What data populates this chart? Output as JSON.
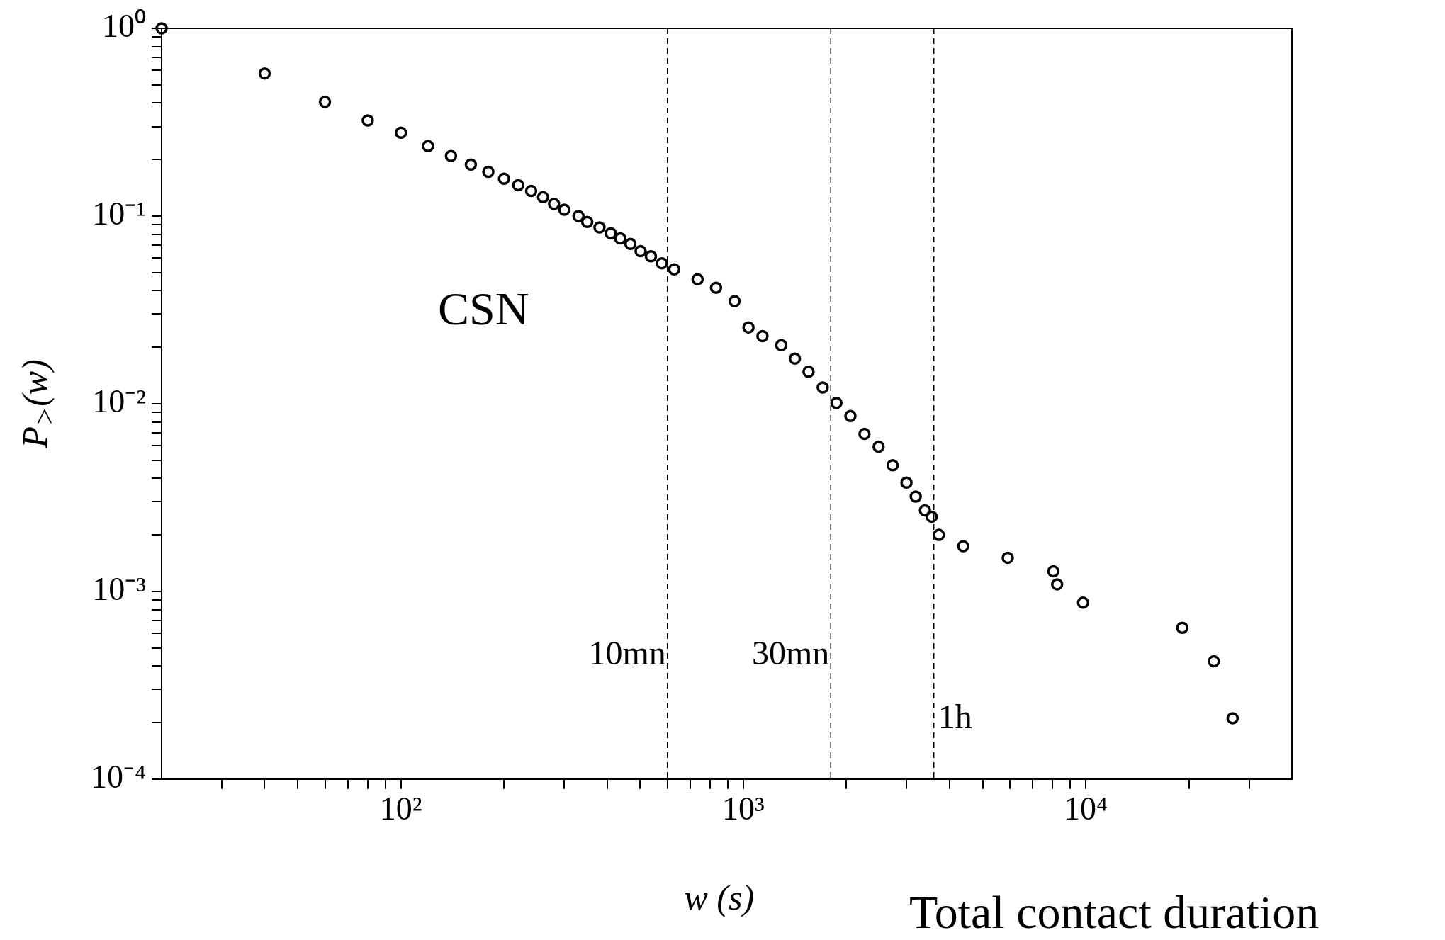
{
  "chart_data": {
    "type": "scatter",
    "xlabel": "w (s)",
    "ylabel": "P$_{>}$(w)",
    "log": "xy",
    "grid": false,
    "legend": false,
    "marker": "circle",
    "x": [
      20,
      40,
      60,
      80,
      100,
      120,
      140,
      160,
      180,
      200,
      220,
      240,
      260,
      280,
      300,
      330,
      350,
      380,
      410,
      437,
      468,
      501,
      537,
      578,
      628,
      735,
      832,
      943,
      1035,
      1137,
      1290,
      1414,
      1550,
      1705,
      1870,
      2054,
      2258,
      2483,
      2729,
      2995,
      3187,
      3391,
      3548,
      3725,
      4385,
      5918,
      8040,
      8250,
      9820,
      19140,
      23660,
      26850
    ],
    "series": [
      {
        "color": "#000000",
        "values": [
          1.0,
          0.575,
          0.406,
          0.323,
          0.278,
          0.236,
          0.209,
          0.188,
          0.172,
          0.158,
          0.146,
          0.136,
          0.126,
          0.116,
          0.108,
          0.1,
          0.093,
          0.087,
          0.081,
          0.076,
          0.071,
          0.065,
          0.061,
          0.056,
          0.052,
          0.046,
          0.0415,
          0.0352,
          0.0255,
          0.0229,
          0.0205,
          0.0174,
          0.0148,
          0.0122,
          0.0101,
          0.0086,
          0.0069,
          0.0059,
          0.0047,
          0.0038,
          0.0032,
          0.0027,
          0.0025,
          0.002,
          0.00174,
          0.00151,
          0.00128,
          0.00109,
          0.00087,
          0.00064,
          0.000424,
          0.000211
        ]
      }
    ],
    "xlim": [
      20,
      40000
    ],
    "xticks": [
      {
        "value": 30,
        "label": null
      },
      {
        "value": 40,
        "label": null
      },
      {
        "value": 50,
        "label": null
      },
      {
        "value": 60,
        "label": null
      },
      {
        "value": 70,
        "label": null
      },
      {
        "value": 80,
        "label": null
      },
      {
        "value": 90,
        "label": null
      },
      {
        "value": 100,
        "label": "10²"
      },
      {
        "value": 200,
        "label": null
      },
      {
        "value": 300,
        "label": null
      },
      {
        "value": 400,
        "label": null
      },
      {
        "value": 500,
        "label": null
      },
      {
        "value": 600,
        "label": null
      },
      {
        "value": 700,
        "label": null
      },
      {
        "value": 800,
        "label": null
      },
      {
        "value": 900,
        "label": null
      },
      {
        "value": 1000,
        "label": "10³"
      },
      {
        "value": 2000,
        "label": null
      },
      {
        "value": 3000,
        "label": null
      },
      {
        "value": 4000,
        "label": null
      },
      {
        "value": 5000,
        "label": null
      },
      {
        "value": 6000,
        "label": null
      },
      {
        "value": 7000,
        "label": null
      },
      {
        "value": 8000,
        "label": null
      },
      {
        "value": 9000,
        "label": null
      },
      {
        "value": 10000,
        "label": "10⁴"
      },
      {
        "value": 20000,
        "label": null
      },
      {
        "value": 30000,
        "label": null
      }
    ],
    "ylim": [
      0.0001,
      1
    ],
    "yticks": [
      {
        "value": 0.0001,
        "label": "10⁻⁴"
      },
      {
        "value": 0.0002,
        "label": null
      },
      {
        "value": 0.0003,
        "label": null
      },
      {
        "value": 0.0004,
        "label": null
      },
      {
        "value": 0.0005,
        "label": null
      },
      {
        "value": 0.0006,
        "label": null
      },
      {
        "value": 0.0007,
        "label": null
      },
      {
        "value": 0.0008,
        "label": null
      },
      {
        "value": 0.0009,
        "label": null
      },
      {
        "value": 0.001,
        "label": "10⁻³"
      },
      {
        "value": 0.002,
        "label": null
      },
      {
        "value": 0.003,
        "label": null
      },
      {
        "value": 0.004,
        "label": null
      },
      {
        "value": 0.005,
        "label": null
      },
      {
        "value": 0.006,
        "label": null
      },
      {
        "value": 0.007,
        "label": null
      },
      {
        "value": 0.008,
        "label": null
      },
      {
        "value": 0.009,
        "label": null
      },
      {
        "value": 0.01,
        "label": "10⁻²"
      },
      {
        "value": 0.02,
        "label": null
      },
      {
        "value": 0.03,
        "label": null
      },
      {
        "value": 0.04,
        "label": null
      },
      {
        "value": 0.05,
        "label": null
      },
      {
        "value": 0.06,
        "label": null
      },
      {
        "value": 0.07,
        "label": null
      },
      {
        "value": 0.08,
        "label": null
      },
      {
        "value": 0.09,
        "label": null
      },
      {
        "value": 0.1,
        "label": "10⁻¹"
      },
      {
        "value": 0.2,
        "label": null
      },
      {
        "value": 0.3,
        "label": null
      },
      {
        "value": 0.4,
        "label": null
      },
      {
        "value": 0.5,
        "label": null
      },
      {
        "value": 0.6,
        "label": null
      },
      {
        "value": 0.7,
        "label": null
      },
      {
        "value": 0.8,
        "label": null
      },
      {
        "value": 0.9,
        "label": null
      },
      {
        "value": 1,
        "label": "10⁰"
      }
    ],
    "ref_lines": [
      {
        "axis": "x",
        "value": 600,
        "label": "10mn",
        "line_style": "dashed",
        "color": "#000000"
      },
      {
        "axis": "x",
        "value": 1800,
        "label": "30mn",
        "line_style": "dashed",
        "color": "#000000"
      },
      {
        "axis": "x",
        "value": 3600,
        "label": "1h",
        "line_style": "dashed",
        "color": "#000000"
      }
    ],
    "annotations": [
      "CSN",
      "Total contact duration"
    ]
  }
}
